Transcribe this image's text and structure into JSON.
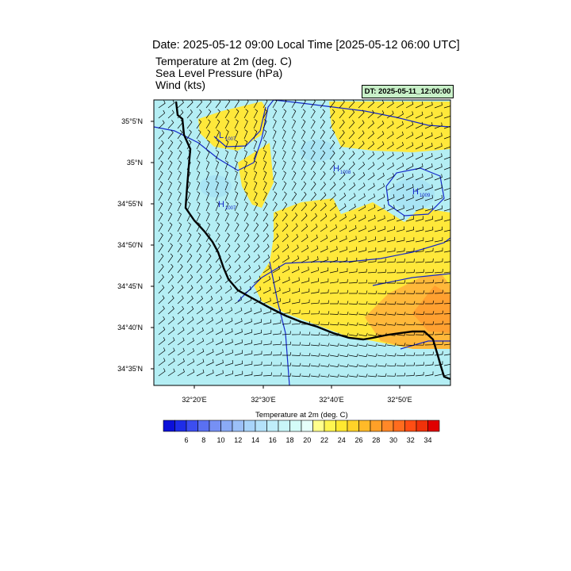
{
  "header": {
    "title": "Date: 2025-05-12  09:00 Local Time [2025-05-12  06:00 UTC]",
    "fields": [
      "Temperature at 2m   (deg. C)",
      "Sea Level Pressure   (hPa)",
      "Wind   (kts)"
    ],
    "dt_badge": "DT: 2025-05-11_12:00:00"
  },
  "axes": {
    "lat_labels": [
      "35°5'N",
      "35°N",
      "34°55'N",
      "34°50'N",
      "34°45'N",
      "34°40'N",
      "34°35'N"
    ],
    "lon_labels": [
      "32°20'E",
      "32°30'E",
      "32°40'E",
      "32°50'E"
    ]
  },
  "pressure_centers": [
    {
      "letter": "L",
      "value": "1007"
    },
    {
      "letter": "H",
      "value": "1007"
    },
    {
      "letter": "H",
      "value": "1008"
    },
    {
      "letter": "H",
      "value": "1009"
    }
  ],
  "colorbar": {
    "title": "Temperature at 2m  (deg. C)",
    "labels": [
      "6",
      "8",
      "10",
      "12",
      "14",
      "16",
      "18",
      "20",
      "22",
      "24",
      "26",
      "28",
      "30",
      "32",
      "34"
    ],
    "colors": [
      "#0b10d9",
      "#1e2de8",
      "#3c4ef0",
      "#5a70f2",
      "#7690f4",
      "#8aaaf6",
      "#9cc0f8",
      "#a8d4fa",
      "#b4e2fa",
      "#bfeefa",
      "#c8f6f8",
      "#d4fcf8",
      "#e6fffa",
      "#ffff8c",
      "#fff550",
      "#ffe830",
      "#ffd228",
      "#ffba28",
      "#ffa028",
      "#ff8828",
      "#ff6c1e",
      "#ff4e14",
      "#f0320a",
      "#e00000"
    ]
  },
  "legend_colors": {
    "sea": "#b4eef4",
    "land_warm": "#ffe83a",
    "land_hot": "#ffb83a",
    "land_cool": "#a8e4f4",
    "isobar": "#1428c8",
    "coast": "#000000"
  }
}
